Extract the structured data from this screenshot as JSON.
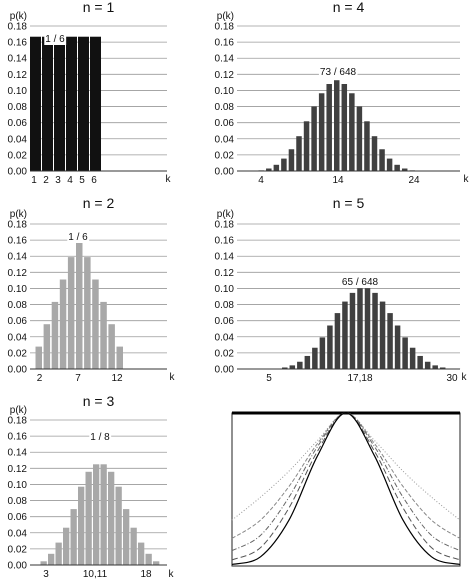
{
  "chart_data": [
    {
      "type": "bar",
      "title": "n = 1",
      "ylabel": "p(k)",
      "xlabel": "k",
      "ylim": [
        0,
        0.18
      ],
      "yticks": [
        "0.00",
        "0.02",
        "0.04",
        "0.06",
        "0.08",
        "0.10",
        "0.12",
        "0.14",
        "0.16",
        "0.18"
      ],
      "xtick_labels": [
        "1",
        "2",
        "3",
        "4",
        "5",
        "6"
      ],
      "annotation": "1 / 6",
      "bar_color": "#111111",
      "k_start": 1,
      "values": [
        0.1667,
        0.1667,
        0.1667,
        0.1667,
        0.1667,
        0.1667
      ]
    },
    {
      "type": "bar",
      "title": "n = 2",
      "ylabel": "p(k)",
      "xlabel": "k",
      "ylim": [
        0,
        0.18
      ],
      "yticks": [
        "0.00",
        "0.02",
        "0.04",
        "0.06",
        "0.08",
        "0.10",
        "0.12",
        "0.14",
        "0.16",
        "0.18"
      ],
      "xtick_labels": [
        "2",
        "7",
        "12"
      ],
      "annotation": "1 / 6",
      "bar_color": "#a8a8a8",
      "k_start": 2,
      "values": [
        0.0278,
        0.0556,
        0.0833,
        0.1111,
        0.1389,
        0.1667,
        0.1389,
        0.1111,
        0.0833,
        0.0556,
        0.0278
      ]
    },
    {
      "type": "bar",
      "title": "n = 3",
      "ylabel": "p(k)",
      "xlabel": "k",
      "ylim": [
        0,
        0.18
      ],
      "yticks": [
        "0.00",
        "0.02",
        "0.04",
        "0.06",
        "0.08",
        "0.10",
        "0.12",
        "0.14",
        "0.16",
        "0.18"
      ],
      "xtick_labels": [
        "3",
        "10,11",
        "18"
      ],
      "annotation": "1 / 8",
      "bar_color": "#a8a8a8",
      "k_start": 3,
      "values": [
        0.0046,
        0.0139,
        0.0278,
        0.0463,
        0.0694,
        0.0972,
        0.1157,
        0.125,
        0.125,
        0.1157,
        0.0972,
        0.0694,
        0.0463,
        0.0278,
        0.0139,
        0.0046
      ]
    },
    {
      "type": "bar",
      "title": "n = 4",
      "ylabel": "p(k)",
      "xlabel": "k",
      "ylim": [
        0,
        0.18
      ],
      "yticks": [
        "0.00",
        "0.02",
        "0.04",
        "0.06",
        "0.08",
        "0.10",
        "0.12",
        "0.14",
        "0.16",
        "0.18"
      ],
      "xtick_labels": [
        "4",
        "14",
        "24"
      ],
      "annotation": "73 / 648",
      "bar_color": "#404040",
      "k_start": 4,
      "values": [
        0.0008,
        0.0031,
        0.0077,
        0.0154,
        0.027,
        0.0432,
        0.0617,
        0.0802,
        0.0965,
        0.108,
        0.1127,
        0.108,
        0.0965,
        0.0802,
        0.0617,
        0.0432,
        0.027,
        0.0154,
        0.0077,
        0.0031,
        0.0008
      ]
    },
    {
      "type": "bar",
      "title": "n = 5",
      "ylabel": "p(k)",
      "xlabel": "k",
      "ylim": [
        0,
        0.18
      ],
      "yticks": [
        "0.00",
        "0.02",
        "0.04",
        "0.06",
        "0.08",
        "0.10",
        "0.12",
        "0.14",
        "0.16",
        "0.18"
      ],
      "xtick_labels": [
        "5",
        "17,18",
        "30"
      ],
      "annotation": "65 / 648",
      "bar_color": "#404040",
      "k_start": 5,
      "values": [
        0.0001,
        0.0006,
        0.0019,
        0.0045,
        0.009,
        0.0162,
        0.0264,
        0.0392,
        0.054,
        0.0694,
        0.0837,
        0.0945,
        0.1003,
        0.1003,
        0.0945,
        0.0837,
        0.0694,
        0.054,
        0.0392,
        0.0264,
        0.0162,
        0.009,
        0.0045,
        0.0019,
        0.0006,
        0.0001
      ]
    },
    {
      "type": "line",
      "title": "",
      "x": [
        -1,
        -0.75,
        -0.5,
        -0.25,
        0,
        0.25,
        0.5,
        0.75,
        1
      ],
      "series": [
        {
          "values": [
            0.3,
            0.45,
            0.62,
            0.82,
            1.0,
            0.82,
            0.62,
            0.45,
            0.3
          ],
          "color": "#999999",
          "dash": "1,2"
        },
        {
          "values": [
            0.18,
            0.3,
            0.52,
            0.8,
            1.0,
            0.8,
            0.52,
            0.3,
            0.18
          ],
          "color": "#888888",
          "dash": "4,2"
        },
        {
          "values": [
            0.1,
            0.2,
            0.45,
            0.78,
            1.0,
            0.78,
            0.45,
            0.2,
            0.1
          ],
          "color": "#666666",
          "dash": "5,2,1,2"
        },
        {
          "values": [
            0.04,
            0.12,
            0.38,
            0.75,
            1.0,
            0.75,
            0.38,
            0.12,
            0.04
          ],
          "color": "#555555",
          "dash": "6,3"
        },
        {
          "values": [
            0.01,
            0.06,
            0.3,
            0.72,
            1.0,
            0.72,
            0.3,
            0.06,
            0.01
          ],
          "color": "#000000",
          "dash": ""
        }
      ]
    }
  ]
}
